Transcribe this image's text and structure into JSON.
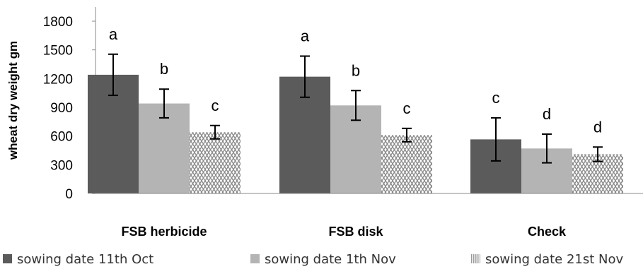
{
  "chart_data": {
    "type": "bar",
    "ylabel": "wheat dry weight  gm",
    "ylim": [
      0,
      1800
    ],
    "yticks": [
      0,
      300,
      600,
      900,
      1200,
      1500,
      1800
    ],
    "categories": [
      "FSB herbicide",
      "FSB disk",
      "Check"
    ],
    "series": [
      {
        "name": "sowing date 11th Oct",
        "color": "#5b5b5b",
        "fill": "solid",
        "values": [
          1240,
          1220,
          565
        ],
        "errors": [
          215,
          215,
          225
        ],
        "letters": [
          "a",
          "a",
          "c"
        ]
      },
      {
        "name": "sowing date 1th Nov",
        "color": "#b4b4b4",
        "fill": "solid",
        "values": [
          940,
          920,
          470
        ],
        "errors": [
          150,
          155,
          150
        ],
        "letters": [
          "b",
          "b",
          "d"
        ]
      },
      {
        "name": "sowing date 21st Nov",
        "color": "#9a9a9a",
        "fill": "hatched",
        "values": [
          640,
          610,
          410
        ],
        "errors": [
          70,
          70,
          75
        ],
        "letters": [
          "c",
          "c",
          "d"
        ]
      }
    ],
    "grid": false,
    "legend_position": "bottom"
  }
}
